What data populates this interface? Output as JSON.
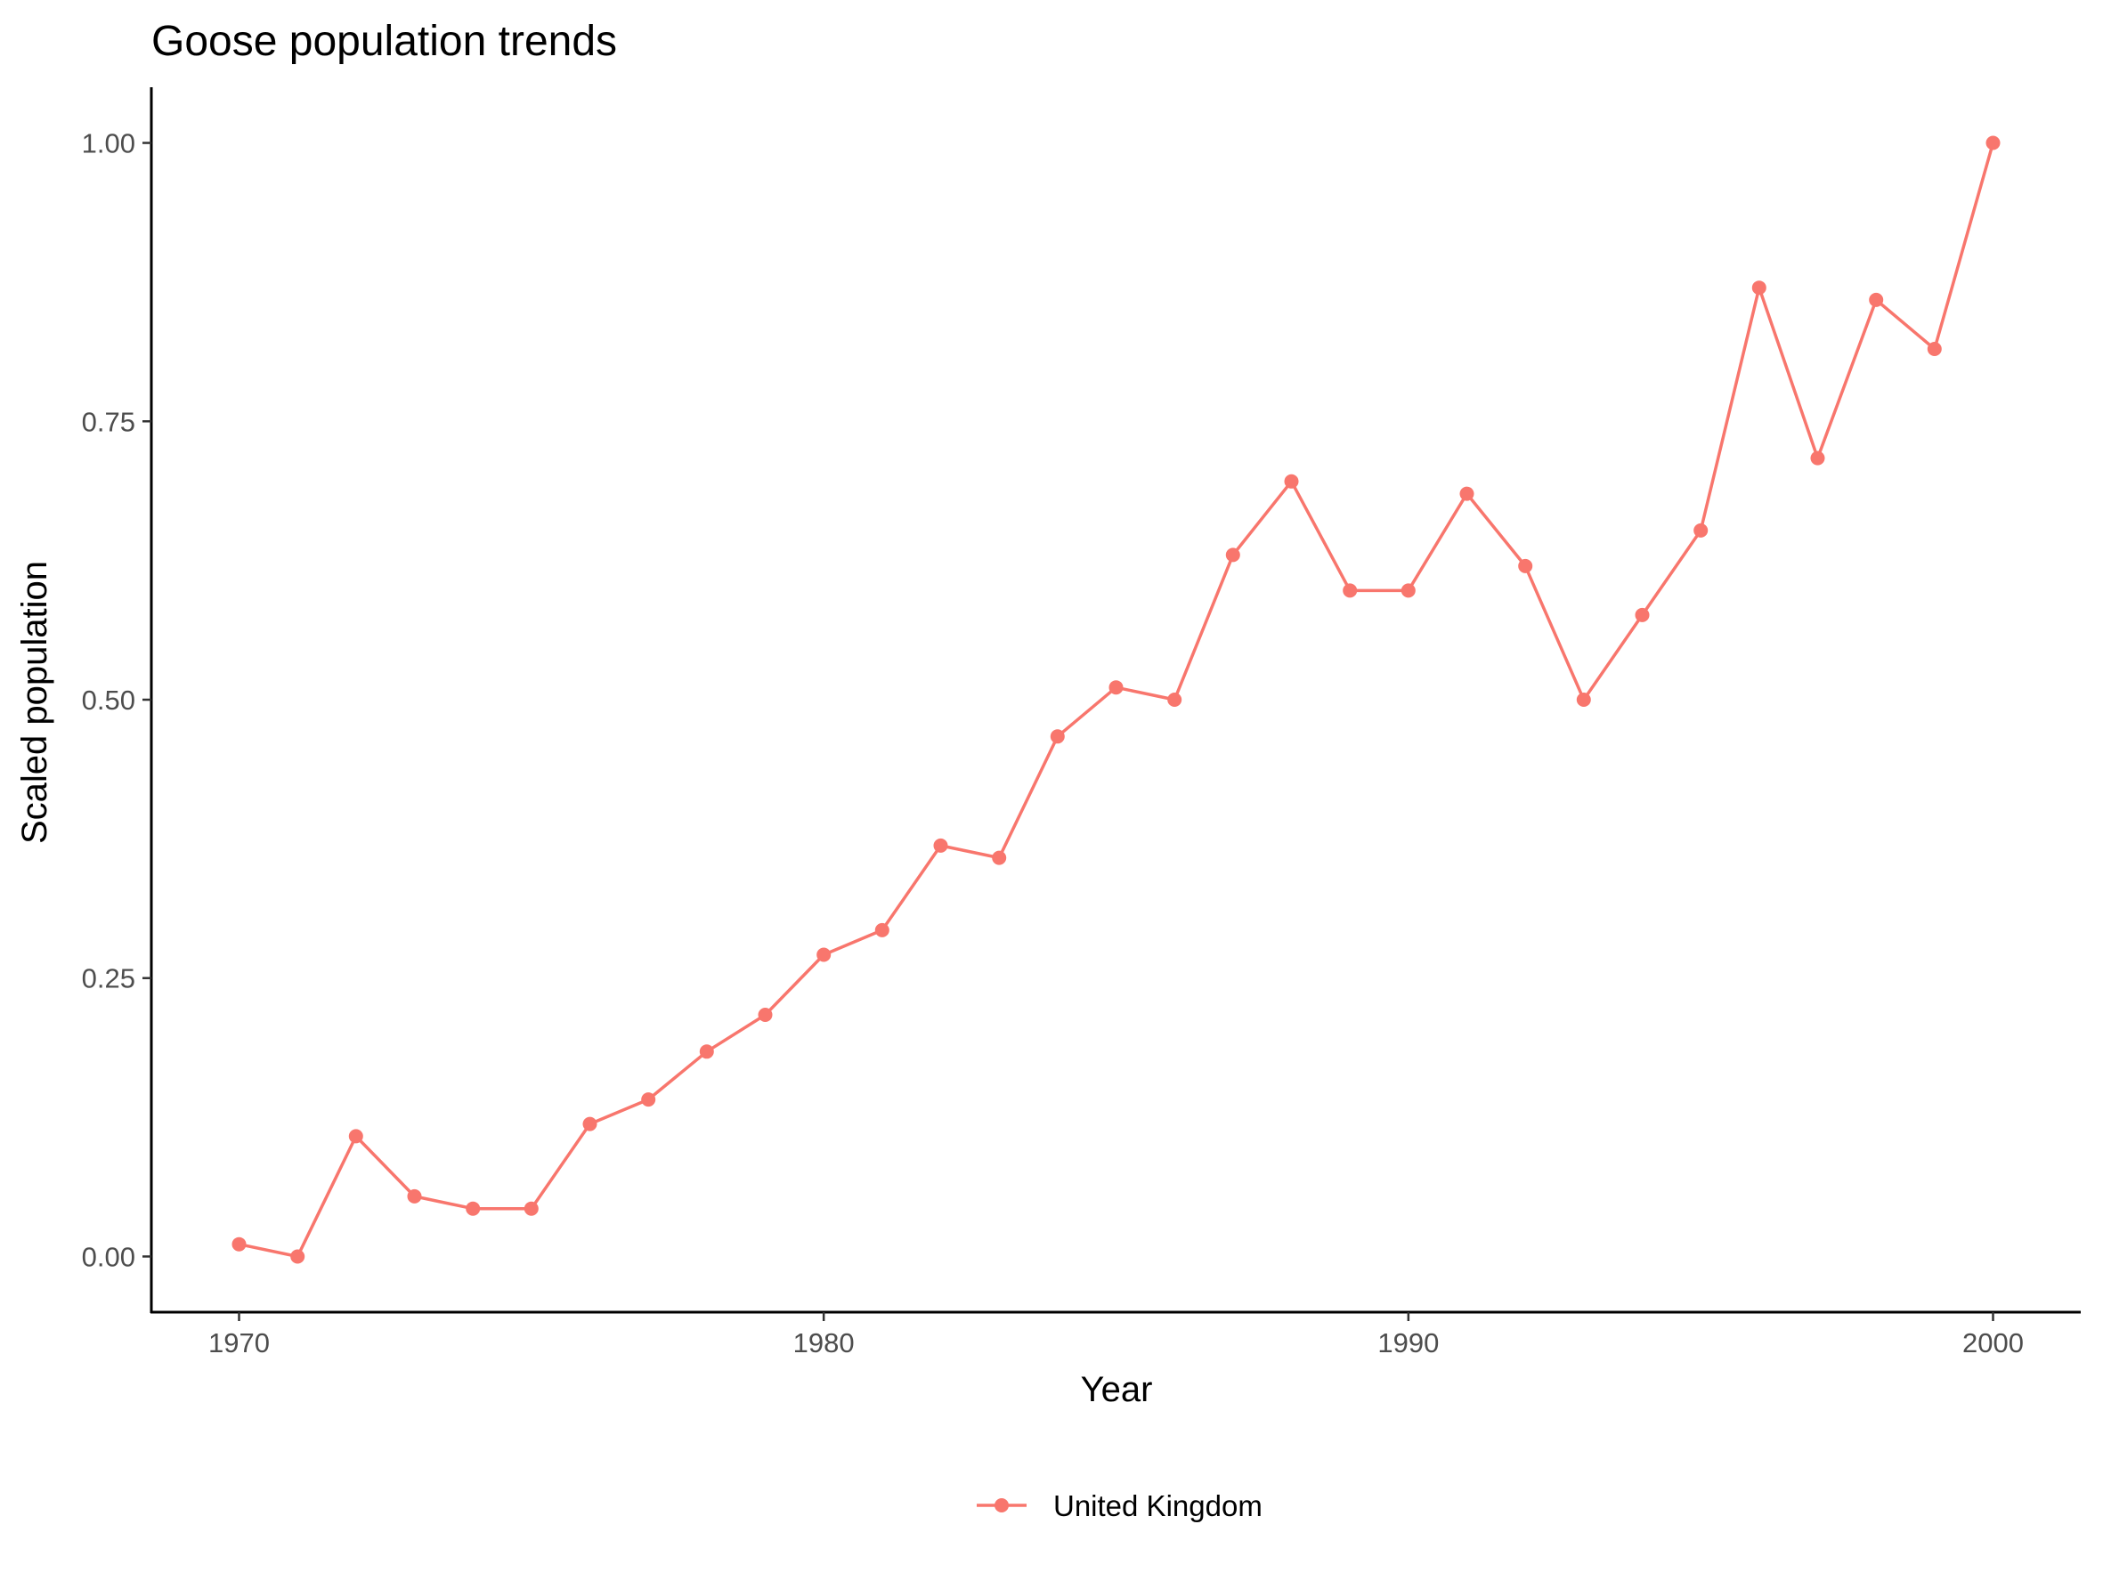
{
  "chart_data": {
    "type": "line",
    "title": "Goose population trends",
    "xlabel": "Year",
    "ylabel": "Scaled population",
    "x": [
      1970,
      1971,
      1972,
      1973,
      1974,
      1975,
      1976,
      1977,
      1978,
      1979,
      1980,
      1981,
      1982,
      1983,
      1984,
      1985,
      1986,
      1987,
      1988,
      1989,
      1990,
      1991,
      1992,
      1993,
      1994,
      1995,
      1996,
      1997,
      1998,
      1999,
      2000
    ],
    "series": [
      {
        "name": "United Kingdom",
        "color": "#F8766D",
        "values": [
          0.011,
          0.0,
          0.108,
          0.054,
          0.043,
          0.043,
          0.119,
          0.141,
          0.184,
          0.217,
          0.271,
          0.293,
          0.369,
          0.358,
          0.467,
          0.511,
          0.5,
          0.63,
          0.696,
          0.598,
          0.598,
          0.685,
          0.62,
          0.5,
          0.576,
          0.652,
          0.87,
          0.717,
          0.859,
          0.815,
          1.0
        ]
      }
    ],
    "xlim": [
      1968.5,
      2001.5
    ],
    "ylim": [
      -0.05,
      1.05
    ],
    "x_ticks": [
      1970,
      1980,
      1990,
      2000
    ],
    "x_tick_labels": [
      "1970",
      "1980",
      "1990",
      "2000"
    ],
    "y_ticks": [
      0,
      0.25,
      0.5,
      0.75,
      1.0
    ],
    "y_tick_labels": [
      "0.00",
      "0.25",
      "0.50",
      "0.75",
      "1.00"
    ],
    "grid": false,
    "legend_position": "bottom"
  }
}
